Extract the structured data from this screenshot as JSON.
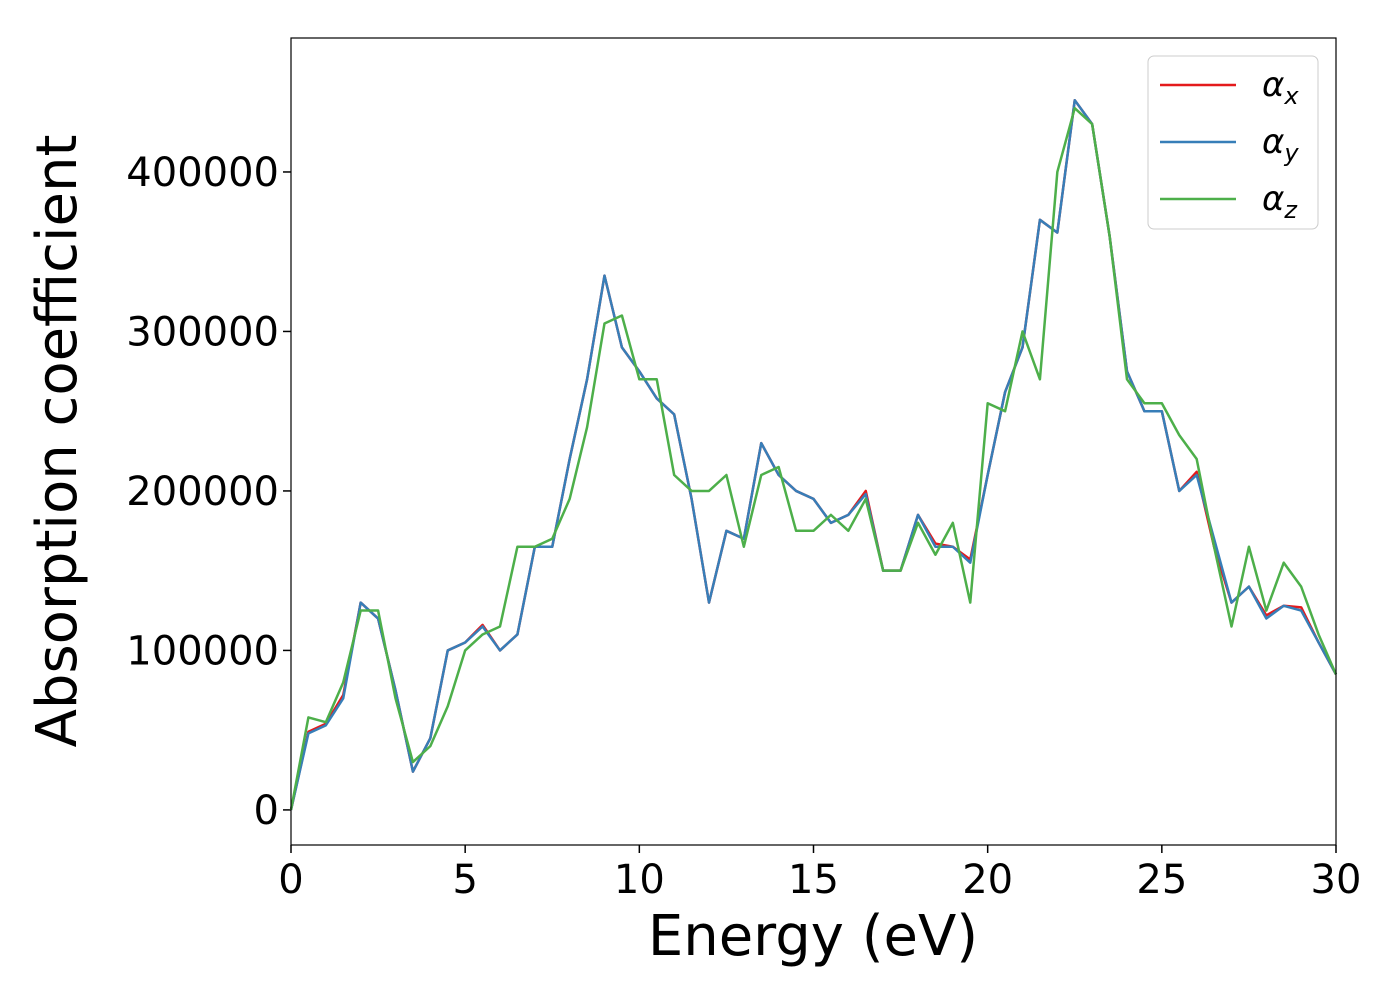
{
  "chart_data": {
    "type": "line",
    "x_label": "Energy (eV)",
    "y_label": "Absorption coefficient",
    "x": [
      0,
      0.5,
      1,
      1.5,
      2,
      2.5,
      3,
      3.5,
      4,
      4.5,
      5,
      5.5,
      6,
      6.5,
      7,
      7.5,
      8,
      8.5,
      9,
      9.5,
      10,
      10.5,
      11,
      11.5,
      12,
      12.5,
      13,
      13.5,
      14,
      14.5,
      15,
      15.5,
      16,
      16.5,
      17,
      17.5,
      18,
      18.5,
      19,
      19.5,
      20,
      20.5,
      21,
      21.5,
      22,
      22.5,
      23,
      23.5,
      24,
      24.5,
      25,
      25.5,
      26,
      26.5,
      27,
      27.5,
      28,
      28.5,
      29,
      29.5,
      30
    ],
    "series": [
      {
        "name": "αx",
        "color": "#e41a1c",
        "values": [
          0,
          49000,
          54000,
          72000,
          130000,
          120000,
          75000,
          24000,
          45000,
          100000,
          105000,
          116000,
          100000,
          110000,
          165000,
          165000,
          220000,
          270000,
          335000,
          290000,
          275000,
          258000,
          248000,
          195000,
          130000,
          175000,
          170000,
          230000,
          210000,
          200000,
          195000,
          180000,
          185000,
          200000,
          150000,
          150000,
          185000,
          167000,
          165000,
          157000,
          210000,
          262000,
          290000,
          370000,
          362000,
          445000,
          430000,
          360000,
          275000,
          250000,
          250000,
          200000,
          212000,
          165000,
          130000,
          140000,
          122000,
          128000,
          127000,
          105000,
          85000
        ]
      },
      {
        "name": "αy",
        "color": "#377eb8",
        "values": [
          0,
          48000,
          53000,
          70000,
          130000,
          120000,
          75000,
          24000,
          45000,
          100000,
          105000,
          115000,
          100000,
          110000,
          165000,
          165000,
          220000,
          270000,
          335000,
          290000,
          275000,
          258000,
          248000,
          195000,
          130000,
          175000,
          170000,
          230000,
          210000,
          200000,
          195000,
          180000,
          185000,
          198000,
          150000,
          150000,
          185000,
          165000,
          165000,
          155000,
          210000,
          262000,
          290000,
          370000,
          362000,
          445000,
          430000,
          360000,
          275000,
          250000,
          250000,
          200000,
          210000,
          170000,
          130000,
          140000,
          120000,
          128000,
          125000,
          105000,
          85000
        ]
      },
      {
        "name": "αz",
        "color": "#4daf4a",
        "values": [
          0,
          58000,
          55000,
          80000,
          125000,
          125000,
          70000,
          30000,
          40000,
          65000,
          100000,
          110000,
          115000,
          165000,
          165000,
          170000,
          195000,
          240000,
          305000,
          310000,
          270000,
          270000,
          210000,
          200000,
          200000,
          210000,
          165000,
          210000,
          215000,
          175000,
          175000,
          185000,
          175000,
          195000,
          150000,
          150000,
          180000,
          160000,
          180000,
          130000,
          255000,
          250000,
          300000,
          270000,
          400000,
          440000,
          430000,
          360000,
          270000,
          255000,
          255000,
          235000,
          220000,
          165000,
          115000,
          165000,
          125000,
          155000,
          140000,
          110000,
          85000
        ]
      }
    ],
    "xlim": [
      0,
      30
    ],
    "xticks": [
      0,
      5,
      10,
      15,
      20,
      25,
      30
    ],
    "ylim": [
      -22000,
      484000
    ],
    "yticks": [
      0,
      100000,
      200000,
      300000,
      400000
    ],
    "legend": "upper right"
  }
}
